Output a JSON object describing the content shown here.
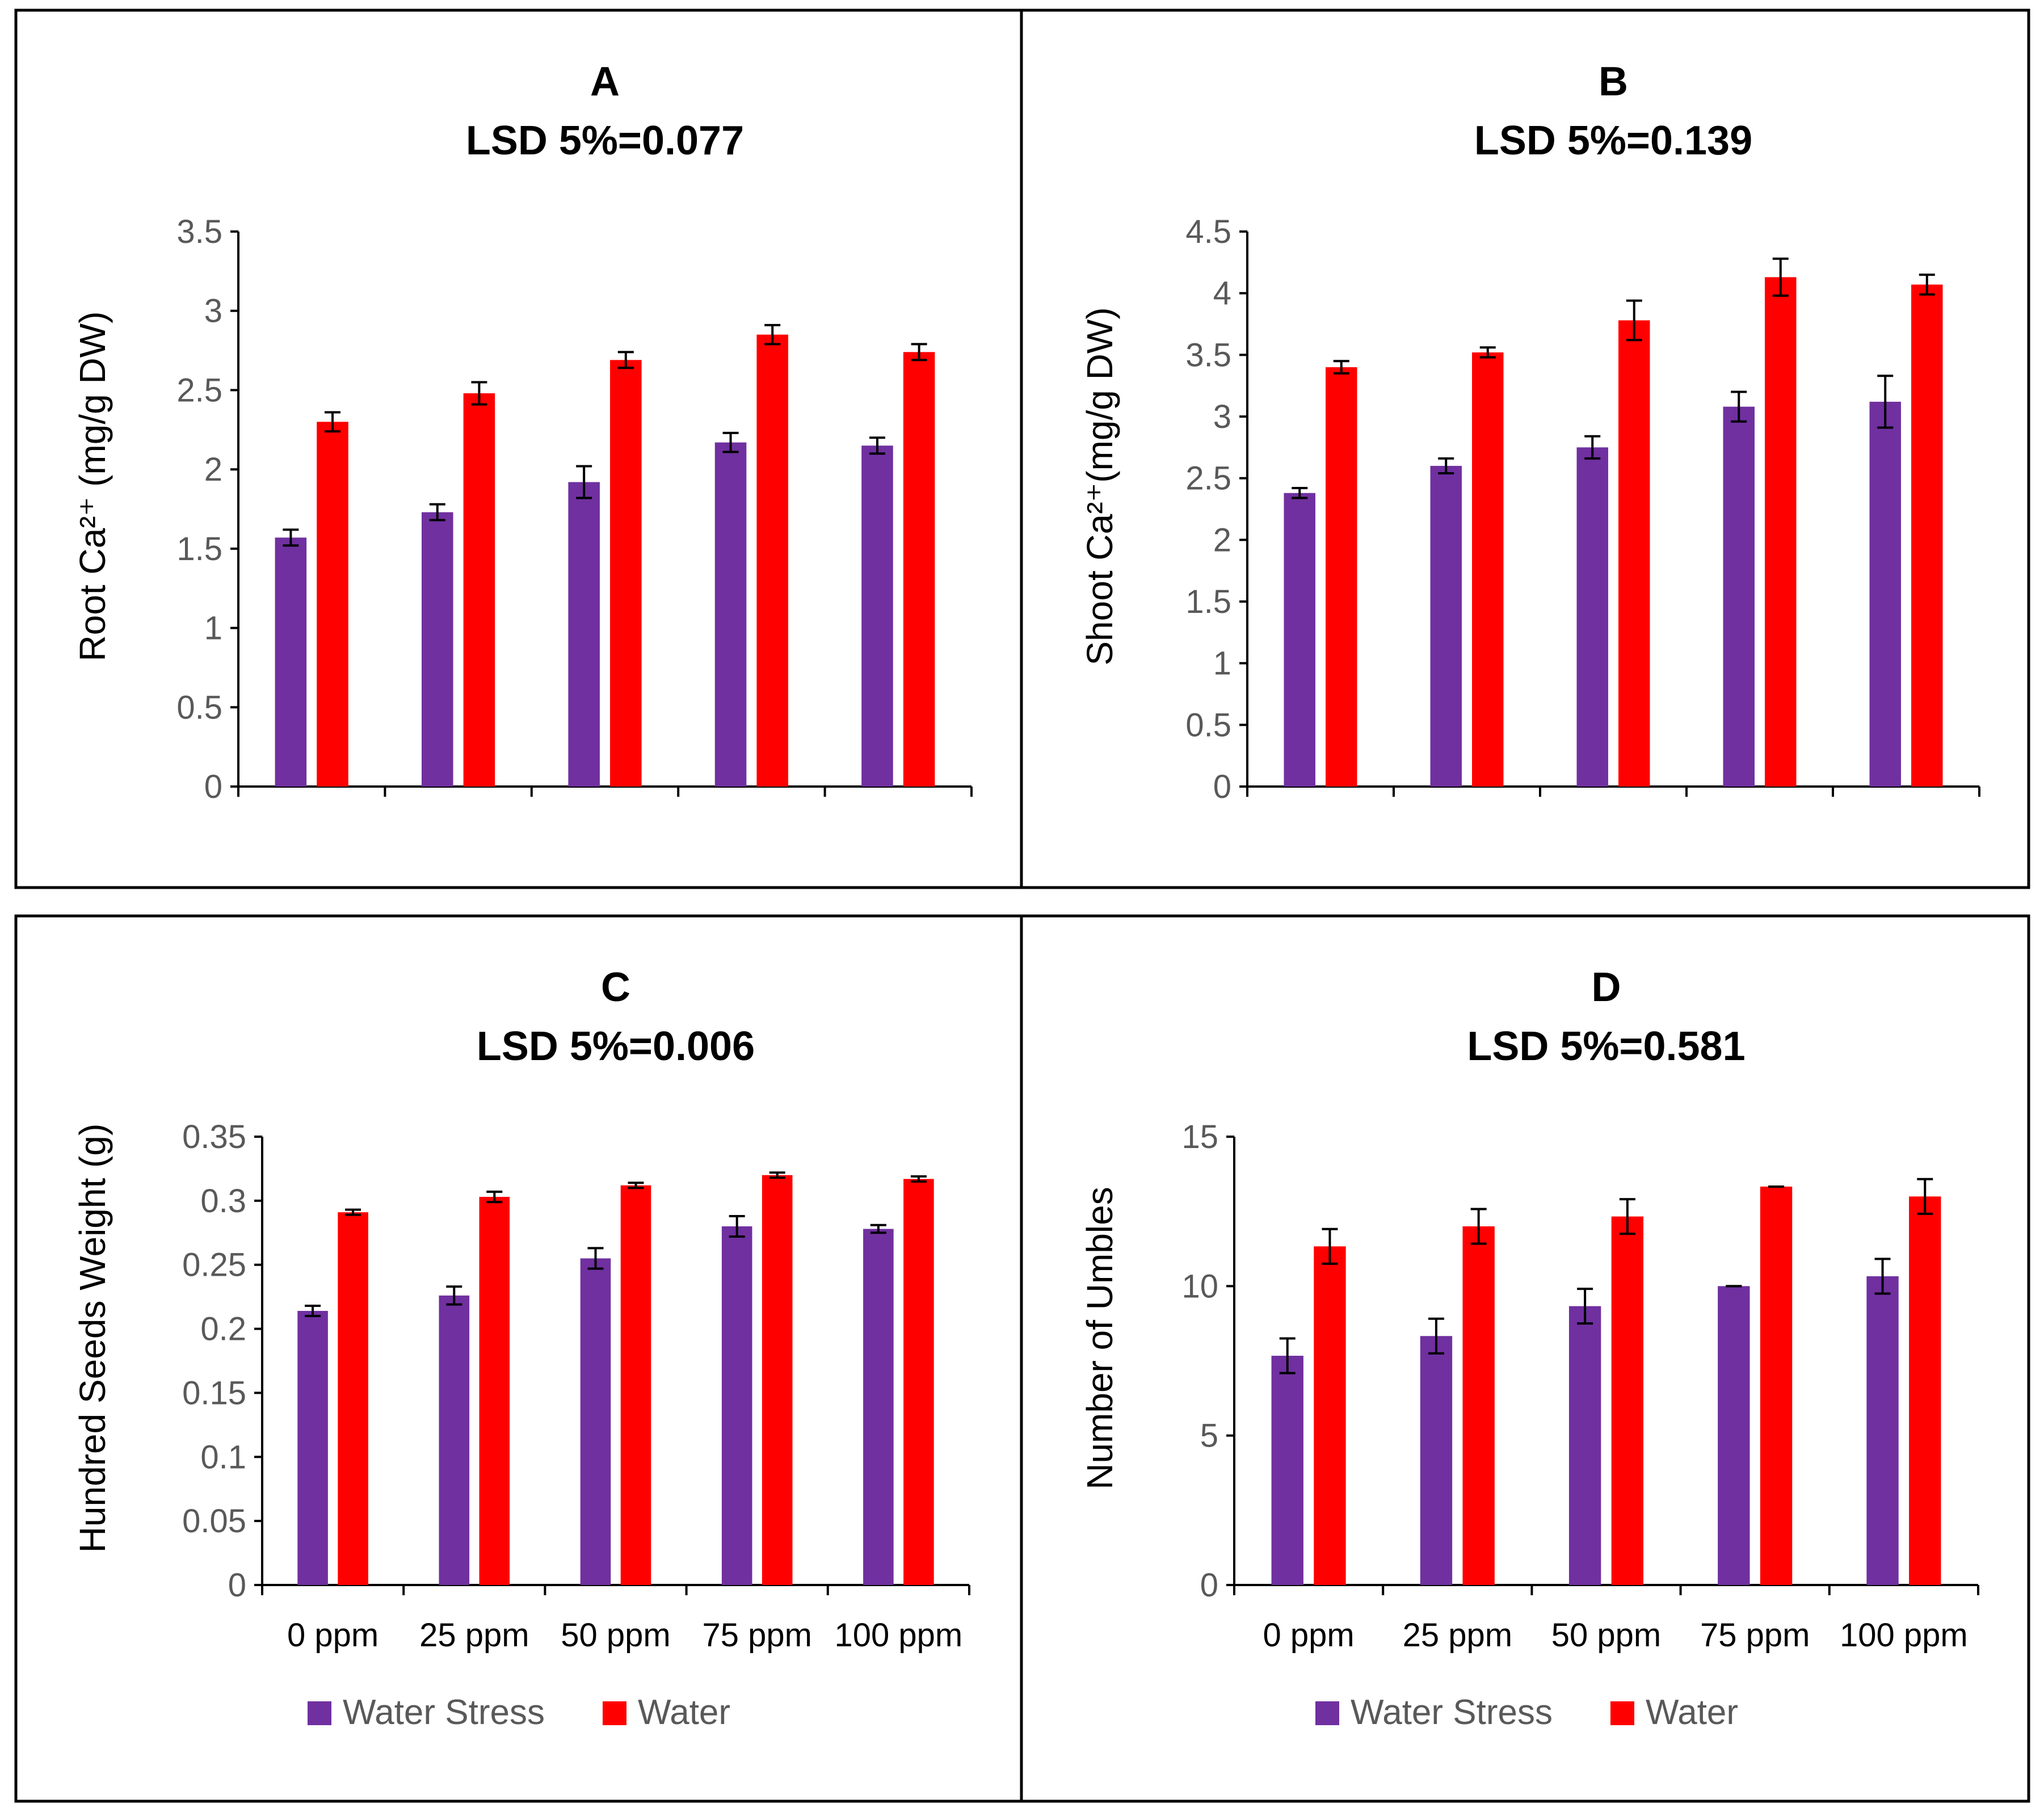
{
  "colors": {
    "water_stress": "#7030A0",
    "water": "#FF0000",
    "axis": "#000000",
    "tick_text": "#595959"
  },
  "chart_data": [
    {
      "id": "A",
      "type": "bar",
      "title": "A",
      "subtitle": "LSD 5%=0.077",
      "ylabel": "Root Ca²⁺ (mg/g DW)",
      "ylim": [
        0,
        3.5
      ],
      "ytick_step": 0.5,
      "yticks": [
        "0",
        "0.5",
        "1",
        "1.5",
        "2",
        "2.5",
        "3",
        "3.5"
      ],
      "categories": [
        "0 ppm",
        "25 ppm",
        "50 ppm",
        "75 ppm",
        "100 ppm"
      ],
      "show_categories": false,
      "show_legend": false,
      "series": [
        {
          "name": "Water Stress",
          "values": [
            1.57,
            1.73,
            1.92,
            2.17,
            2.15
          ],
          "errors": [
            0.05,
            0.05,
            0.1,
            0.06,
            0.05
          ]
        },
        {
          "name": "Water",
          "values": [
            2.3,
            2.48,
            2.69,
            2.85,
            2.74
          ],
          "errors": [
            0.06,
            0.07,
            0.05,
            0.06,
            0.05
          ]
        }
      ]
    },
    {
      "id": "B",
      "type": "bar",
      "title": "B",
      "subtitle": "LSD 5%=0.139",
      "ylabel": "Shoot Ca²⁺(mg/g DW)",
      "ylim": [
        0,
        4.5
      ],
      "ytick_step": 0.5,
      "yticks": [
        "0",
        "0.5",
        "1",
        "1.5",
        "2",
        "2.5",
        "3",
        "3.5",
        "4",
        "4.5"
      ],
      "categories": [
        "0 ppm",
        "25 ppm",
        "50 ppm",
        "75 ppm",
        "100 ppm"
      ],
      "show_categories": false,
      "show_legend": false,
      "series": [
        {
          "name": "Water Stress",
          "values": [
            2.38,
            2.6,
            2.75,
            3.08,
            3.12
          ],
          "errors": [
            0.04,
            0.06,
            0.09,
            0.12,
            0.21
          ]
        },
        {
          "name": "Water",
          "values": [
            3.4,
            3.52,
            3.78,
            4.13,
            4.07
          ],
          "errors": [
            0.05,
            0.04,
            0.16,
            0.15,
            0.08
          ]
        }
      ]
    },
    {
      "id": "C",
      "type": "bar",
      "title": "C",
      "subtitle": "LSD 5%=0.006",
      "ylabel": "Hundred Seeds Weight (g)",
      "ylim": [
        0,
        0.35
      ],
      "ytick_step": 0.05,
      "yticks": [
        "0",
        "0.05",
        "0.1",
        "0.15",
        "0.2",
        "0.25",
        "0.3",
        "0.35"
      ],
      "categories": [
        "0 ppm",
        "25 ppm",
        "50 ppm",
        "75 ppm",
        "100 ppm"
      ],
      "show_categories": true,
      "show_legend": true,
      "legend": [
        "Water Stress",
        "Water"
      ],
      "series": [
        {
          "name": "Water Stress",
          "values": [
            0.214,
            0.226,
            0.255,
            0.28,
            0.278
          ],
          "errors": [
            0.004,
            0.007,
            0.008,
            0.008,
            0.003
          ]
        },
        {
          "name": "Water",
          "values": [
            0.291,
            0.303,
            0.312,
            0.32,
            0.317
          ],
          "errors": [
            0.002,
            0.004,
            0.002,
            0.002,
            0.002
          ]
        }
      ]
    },
    {
      "id": "D",
      "type": "bar",
      "title": "D",
      "subtitle": "LSD 5%=0.581",
      "ylabel": "Number of Umbles",
      "ylim": [
        0,
        15
      ],
      "ytick_step": 5,
      "yticks": [
        "0",
        "5",
        "10",
        "15"
      ],
      "categories": [
        "0 ppm",
        "25 ppm",
        "50 ppm",
        "75 ppm",
        "100 ppm"
      ],
      "show_categories": true,
      "show_legend": true,
      "legend": [
        "Water Stress",
        "Water"
      ],
      "series": [
        {
          "name": "Water Stress",
          "values": [
            7.67,
            8.33,
            9.33,
            10.0,
            10.33
          ],
          "errors": [
            0.58,
            0.58,
            0.58,
            0.0,
            0.58
          ]
        },
        {
          "name": "Water",
          "values": [
            11.33,
            12.0,
            12.33,
            13.33,
            13.0
          ],
          "errors": [
            0.58,
            0.58,
            0.58,
            0.0,
            0.58
          ]
        }
      ]
    }
  ]
}
